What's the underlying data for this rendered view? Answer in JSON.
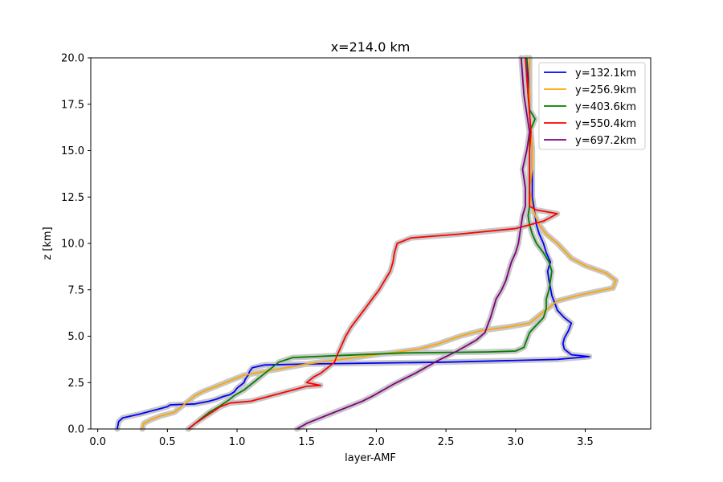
{
  "chart_data": {
    "type": "line",
    "title": "x=214.0 km",
    "xlabel": "layer-AMF",
    "ylabel": "z [km]",
    "xlim": [
      -0.05,
      3.97
    ],
    "ylim": [
      0,
      20
    ],
    "xticks": [
      0.0,
      0.5,
      1.0,
      1.5,
      2.0,
      2.5,
      3.0,
      3.5
    ],
    "xtick_labels": [
      "0.0",
      "0.5",
      "1.0",
      "1.5",
      "2.0",
      "2.5",
      "3.0",
      "3.5"
    ],
    "yticks": [
      0.0,
      2.5,
      5.0,
      7.5,
      10.0,
      12.5,
      15.0,
      17.5,
      20.0
    ],
    "ytick_labels": [
      "0.0",
      "2.5",
      "5.0",
      "7.5",
      "10.0",
      "12.5",
      "15.0",
      "17.5",
      "20.0"
    ],
    "grid": false,
    "legend_position": "top-right",
    "uncertainty_band_color": "#c8c8c8",
    "series": [
      {
        "name": "y=132.1km",
        "color": "#0000ff",
        "points": [
          [
            0.14,
            0.0
          ],
          [
            0.15,
            0.4
          ],
          [
            0.18,
            0.6
          ],
          [
            0.3,
            0.8
          ],
          [
            0.4,
            1.0
          ],
          [
            0.45,
            1.1
          ],
          [
            0.5,
            1.2
          ],
          [
            0.52,
            1.3
          ],
          [
            0.7,
            1.35
          ],
          [
            0.8,
            1.5
          ],
          [
            0.85,
            1.6
          ],
          [
            0.9,
            1.75
          ],
          [
            0.95,
            1.85
          ],
          [
            0.98,
            2.0
          ],
          [
            1.0,
            2.2
          ],
          [
            1.05,
            2.5
          ],
          [
            1.06,
            2.7
          ],
          [
            1.08,
            2.9
          ],
          [
            1.09,
            3.1
          ],
          [
            1.11,
            3.3
          ],
          [
            1.2,
            3.45
          ],
          [
            1.5,
            3.5
          ],
          [
            2.5,
            3.6
          ],
          [
            3.3,
            3.75
          ],
          [
            3.53,
            3.9
          ],
          [
            3.4,
            4.0
          ],
          [
            3.35,
            4.3
          ],
          [
            3.34,
            4.6
          ],
          [
            3.35,
            4.9
          ],
          [
            3.38,
            5.3
          ],
          [
            3.4,
            5.7
          ],
          [
            3.35,
            6.0
          ],
          [
            3.3,
            6.4
          ],
          [
            3.28,
            6.8
          ],
          [
            3.26,
            7.2
          ],
          [
            3.25,
            7.6
          ],
          [
            3.24,
            8.0
          ],
          [
            3.23,
            8.5
          ],
          [
            3.25,
            9.0
          ],
          [
            3.22,
            9.5
          ],
          [
            3.2,
            10.0
          ],
          [
            3.17,
            10.5
          ],
          [
            3.15,
            11.0
          ],
          [
            3.14,
            11.5
          ],
          [
            3.13,
            12.0
          ],
          [
            3.12,
            12.5
          ],
          [
            3.12,
            13.0
          ],
          [
            3.12,
            14.0
          ],
          [
            3.12,
            15.0
          ],
          [
            3.11,
            16.0
          ],
          [
            3.1,
            17.0
          ],
          [
            3.1,
            18.0
          ],
          [
            3.09,
            19.0
          ],
          [
            3.08,
            20.0
          ]
        ]
      },
      {
        "name": "y=256.9km",
        "color": "#ffa500",
        "points": [
          [
            0.32,
            0.0
          ],
          [
            0.33,
            0.3
          ],
          [
            0.38,
            0.5
          ],
          [
            0.45,
            0.7
          ],
          [
            0.55,
            0.9
          ],
          [
            0.6,
            1.2
          ],
          [
            0.65,
            1.5
          ],
          [
            0.7,
            1.8
          ],
          [
            0.75,
            2.0
          ],
          [
            0.85,
            2.3
          ],
          [
            0.95,
            2.6
          ],
          [
            1.05,
            2.9
          ],
          [
            1.2,
            3.1
          ],
          [
            1.35,
            3.3
          ],
          [
            1.5,
            3.5
          ],
          [
            1.7,
            3.7
          ],
          [
            1.9,
            3.9
          ],
          [
            2.1,
            4.1
          ],
          [
            2.3,
            4.3
          ],
          [
            2.45,
            4.6
          ],
          [
            2.6,
            5.0
          ],
          [
            2.75,
            5.3
          ],
          [
            2.95,
            5.5
          ],
          [
            3.1,
            5.7
          ],
          [
            3.15,
            6.0
          ],
          [
            3.2,
            6.3
          ],
          [
            3.25,
            6.6
          ],
          [
            3.3,
            6.9
          ],
          [
            3.45,
            7.2
          ],
          [
            3.7,
            7.6
          ],
          [
            3.72,
            8.0
          ],
          [
            3.65,
            8.4
          ],
          [
            3.5,
            8.8
          ],
          [
            3.4,
            9.2
          ],
          [
            3.35,
            9.6
          ],
          [
            3.3,
            10.0
          ],
          [
            3.22,
            10.5
          ],
          [
            3.17,
            11.0
          ],
          [
            3.14,
            11.5
          ],
          [
            3.12,
            12.0
          ],
          [
            3.1,
            13.0
          ],
          [
            3.12,
            14.0
          ],
          [
            3.12,
            15.0
          ],
          [
            3.11,
            16.0
          ],
          [
            3.1,
            17.0
          ],
          [
            3.1,
            18.0
          ],
          [
            3.1,
            19.0
          ],
          [
            3.1,
            20.0
          ]
        ]
      },
      {
        "name": "y=403.6km",
        "color": "#008000",
        "points": [
          [
            0.65,
            0.0
          ],
          [
            0.7,
            0.3
          ],
          [
            0.75,
            0.6
          ],
          [
            0.8,
            0.9
          ],
          [
            0.87,
            1.2
          ],
          [
            0.93,
            1.5
          ],
          [
            0.98,
            1.8
          ],
          [
            1.05,
            2.1
          ],
          [
            1.1,
            2.4
          ],
          [
            1.15,
            2.7
          ],
          [
            1.2,
            3.0
          ],
          [
            1.25,
            3.3
          ],
          [
            1.3,
            3.6
          ],
          [
            1.4,
            3.85
          ],
          [
            1.7,
            3.95
          ],
          [
            2.2,
            4.1
          ],
          [
            2.8,
            4.15
          ],
          [
            3.0,
            4.2
          ],
          [
            3.06,
            4.4
          ],
          [
            3.08,
            4.8
          ],
          [
            3.1,
            5.2
          ],
          [
            3.15,
            5.6
          ],
          [
            3.2,
            6.0
          ],
          [
            3.22,
            6.5
          ],
          [
            3.22,
            7.0
          ],
          [
            3.24,
            7.5
          ],
          [
            3.25,
            8.0
          ],
          [
            3.26,
            8.5
          ],
          [
            3.24,
            9.0
          ],
          [
            3.2,
            9.5
          ],
          [
            3.15,
            10.0
          ],
          [
            3.12,
            10.5
          ],
          [
            3.1,
            11.0
          ],
          [
            3.09,
            11.5
          ],
          [
            3.1,
            12.0
          ],
          [
            3.1,
            13.0
          ],
          [
            3.1,
            14.0
          ],
          [
            3.1,
            15.0
          ],
          [
            3.1,
            16.0
          ],
          [
            3.14,
            16.7
          ],
          [
            3.1,
            17.2
          ],
          [
            3.09,
            18.0
          ],
          [
            3.08,
            19.0
          ],
          [
            3.08,
            20.0
          ]
        ]
      },
      {
        "name": "y=550.4km",
        "color": "#ff0000",
        "points": [
          [
            0.65,
            0.0
          ],
          [
            0.7,
            0.3
          ],
          [
            0.76,
            0.6
          ],
          [
            0.82,
            0.9
          ],
          [
            0.88,
            1.2
          ],
          [
            0.95,
            1.4
          ],
          [
            1.1,
            1.5
          ],
          [
            1.2,
            1.7
          ],
          [
            1.3,
            1.9
          ],
          [
            1.4,
            2.1
          ],
          [
            1.5,
            2.3
          ],
          [
            1.6,
            2.35
          ],
          [
            1.5,
            2.5
          ],
          [
            1.55,
            2.8
          ],
          [
            1.6,
            3.0
          ],
          [
            1.65,
            3.3
          ],
          [
            1.7,
            3.6
          ],
          [
            1.72,
            4.0
          ],
          [
            1.75,
            4.5
          ],
          [
            1.78,
            5.0
          ],
          [
            1.82,
            5.5
          ],
          [
            1.87,
            6.0
          ],
          [
            1.92,
            6.5
          ],
          [
            1.97,
            7.0
          ],
          [
            2.02,
            7.5
          ],
          [
            2.06,
            8.0
          ],
          [
            2.1,
            8.5
          ],
          [
            2.12,
            9.0
          ],
          [
            2.13,
            9.5
          ],
          [
            2.15,
            10.0
          ],
          [
            2.25,
            10.3
          ],
          [
            2.6,
            10.5
          ],
          [
            3.0,
            10.8
          ],
          [
            3.1,
            11.0
          ],
          [
            3.2,
            11.2
          ],
          [
            3.3,
            11.6
          ],
          [
            3.15,
            11.8
          ],
          [
            3.1,
            12.0
          ],
          [
            3.1,
            13.0
          ],
          [
            3.1,
            14.0
          ],
          [
            3.1,
            15.0
          ],
          [
            3.11,
            16.0
          ],
          [
            3.1,
            17.0
          ],
          [
            3.09,
            18.0
          ],
          [
            3.08,
            19.0
          ],
          [
            3.07,
            20.0
          ]
        ]
      },
      {
        "name": "y=697.2km",
        "color": "#800080",
        "points": [
          [
            1.43,
            0.0
          ],
          [
            1.5,
            0.3
          ],
          [
            1.6,
            0.6
          ],
          [
            1.7,
            0.9
          ],
          [
            1.8,
            1.2
          ],
          [
            1.9,
            1.5
          ],
          [
            1.98,
            1.8
          ],
          [
            2.05,
            2.1
          ],
          [
            2.12,
            2.4
          ],
          [
            2.2,
            2.7
          ],
          [
            2.28,
            3.0
          ],
          [
            2.35,
            3.3
          ],
          [
            2.42,
            3.6
          ],
          [
            2.5,
            3.9
          ],
          [
            2.58,
            4.2
          ],
          [
            2.65,
            4.5
          ],
          [
            2.72,
            4.8
          ],
          [
            2.78,
            5.2
          ],
          [
            2.8,
            5.6
          ],
          [
            2.82,
            6.0
          ],
          [
            2.84,
            6.5
          ],
          [
            2.86,
            7.0
          ],
          [
            2.9,
            7.5
          ],
          [
            2.93,
            8.0
          ],
          [
            2.95,
            8.5
          ],
          [
            2.97,
            9.0
          ],
          [
            3.0,
            9.5
          ],
          [
            3.02,
            10.0
          ],
          [
            3.03,
            10.5
          ],
          [
            3.04,
            11.0
          ],
          [
            3.05,
            11.5
          ],
          [
            3.07,
            12.0
          ],
          [
            3.07,
            12.5
          ],
          [
            3.07,
            13.0
          ],
          [
            3.05,
            14.0
          ],
          [
            3.08,
            15.0
          ],
          [
            3.1,
            16.0
          ],
          [
            3.08,
            17.0
          ],
          [
            3.06,
            18.0
          ],
          [
            3.05,
            19.0
          ],
          [
            3.04,
            20.0
          ]
        ]
      }
    ]
  }
}
